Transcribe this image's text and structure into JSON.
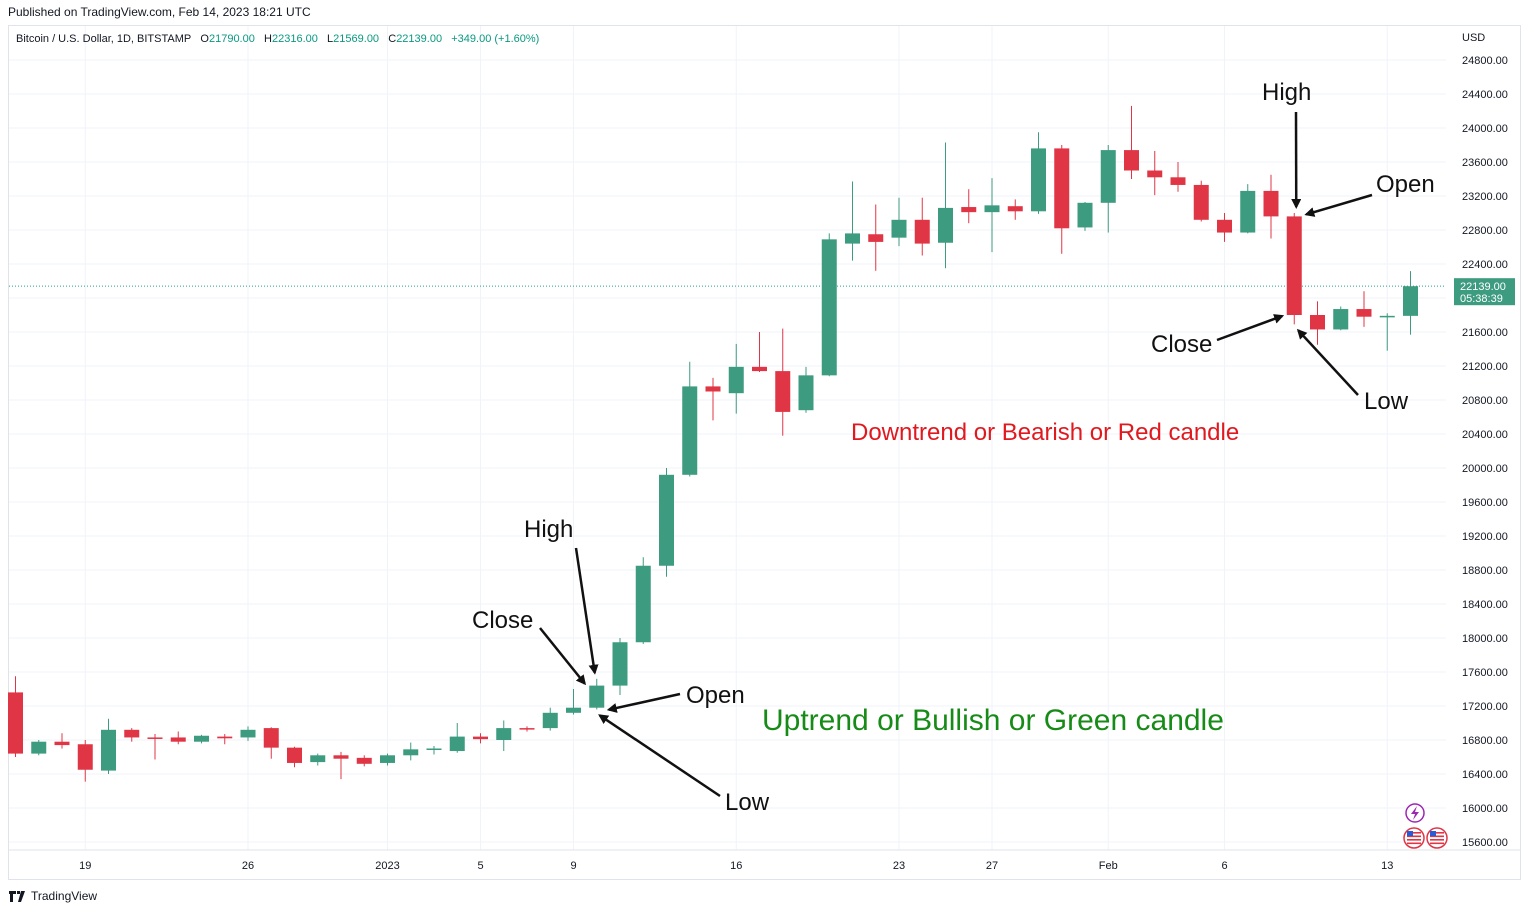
{
  "header": {
    "published": "Published on TradingView.com, Feb 14, 2023 18:21 UTC"
  },
  "legend": {
    "symbol": "Bitcoin / U.S. Dollar, 1D, BITSTAMP",
    "o_label": "O",
    "o_value": "21790.00",
    "h_label": "H",
    "h_value": "22316.00",
    "l_label": "L",
    "l_value": "21569.00",
    "c_label": "C",
    "c_value": "22139.00",
    "change": "+349.00 (+1.60%)"
  },
  "price_label": {
    "price": "22139.00",
    "countdown": "05:38:39"
  },
  "footer": {
    "brand": "TradingView"
  },
  "colors": {
    "up": "#26a69a",
    "up_body": "#3d9b7f",
    "down": "#e03545",
    "grid": "#f0f3fa",
    "axis_text": "#131722",
    "price_line": "#2a9d8f",
    "annot_black": "#111111",
    "annot_red": "#e0191f",
    "annot_green": "#178b17"
  },
  "icons": [
    "lightning-icon",
    "us-flag-icon",
    "us-flag-icon"
  ],
  "chart_data": {
    "type": "candlestick",
    "y_axis_unit": "USD",
    "ylim": [
      15400,
      25000
    ],
    "y_ticks": [
      15600,
      16000,
      16400,
      16800,
      17200,
      17600,
      18000,
      18400,
      18800,
      19200,
      19600,
      20000,
      20400,
      20800,
      21200,
      21600,
      22000,
      22400,
      22800,
      23200,
      23600,
      24000,
      24400,
      24800
    ],
    "y_tick_labels": [
      "15600.00",
      "16000.00",
      "16400.00",
      "16800.00",
      "17200.00",
      "17600.00",
      "18000.00",
      "18400.00",
      "18800.00",
      "19200.00",
      "19600.00",
      "20000.00",
      "20400.00",
      "20800.00",
      "21200.00",
      "21600.00",
      "22000.00",
      "22400.00",
      "22800.00",
      "23200.00",
      "23600.00",
      "24000.00",
      "24400.00",
      "24800.00"
    ],
    "x_ticks": [
      {
        "index": 3,
        "label": "19"
      },
      {
        "index": 10,
        "label": "26"
      },
      {
        "index": 16,
        "label": "2023"
      },
      {
        "index": 20,
        "label": "5"
      },
      {
        "index": 24,
        "label": "9"
      },
      {
        "index": 31,
        "label": "16"
      },
      {
        "index": 38,
        "label": "23"
      },
      {
        "index": 42,
        "label": "27"
      },
      {
        "index": 47,
        "label": "Feb"
      },
      {
        "index": 52,
        "label": "6"
      },
      {
        "index": 59,
        "label": "13"
      }
    ],
    "candles": [
      {
        "o": 17360,
        "h": 17550,
        "l": 16600,
        "c": 16640
      },
      {
        "o": 16640,
        "h": 16800,
        "l": 16620,
        "c": 16780
      },
      {
        "o": 16780,
        "h": 16880,
        "l": 16700,
        "c": 16740
      },
      {
        "o": 16750,
        "h": 16800,
        "l": 16310,
        "c": 16450
      },
      {
        "o": 16440,
        "h": 17050,
        "l": 16400,
        "c": 16920
      },
      {
        "o": 16920,
        "h": 16940,
        "l": 16780,
        "c": 16830
      },
      {
        "o": 16830,
        "h": 16870,
        "l": 16570,
        "c": 16820
      },
      {
        "o": 16830,
        "h": 16900,
        "l": 16750,
        "c": 16780
      },
      {
        "o": 16780,
        "h": 16860,
        "l": 16760,
        "c": 16850
      },
      {
        "o": 16840,
        "h": 16870,
        "l": 16750,
        "c": 16820
      },
      {
        "o": 16830,
        "h": 16960,
        "l": 16790,
        "c": 16920
      },
      {
        "o": 16940,
        "h": 16950,
        "l": 16580,
        "c": 16710
      },
      {
        "o": 16710,
        "h": 16720,
        "l": 16480,
        "c": 16530
      },
      {
        "o": 16540,
        "h": 16640,
        "l": 16500,
        "c": 16620
      },
      {
        "o": 16620,
        "h": 16660,
        "l": 16340,
        "c": 16580
      },
      {
        "o": 16590,
        "h": 16620,
        "l": 16490,
        "c": 16520
      },
      {
        "o": 16530,
        "h": 16640,
        "l": 16500,
        "c": 16620
      },
      {
        "o": 16620,
        "h": 16770,
        "l": 16560,
        "c": 16690
      },
      {
        "o": 16690,
        "h": 16730,
        "l": 16630,
        "c": 16700
      },
      {
        "o": 16670,
        "h": 17000,
        "l": 16650,
        "c": 16840
      },
      {
        "o": 16840,
        "h": 16880,
        "l": 16760,
        "c": 16810
      },
      {
        "o": 16800,
        "h": 17030,
        "l": 16670,
        "c": 16940
      },
      {
        "o": 16940,
        "h": 16960,
        "l": 16900,
        "c": 16930
      },
      {
        "o": 16940,
        "h": 17180,
        "l": 16910,
        "c": 17120
      },
      {
        "o": 17120,
        "h": 17400,
        "l": 17100,
        "c": 17180
      },
      {
        "o": 17180,
        "h": 17520,
        "l": 17160,
        "c": 17440
      },
      {
        "o": 17440,
        "h": 18000,
        "l": 17330,
        "c": 17950
      },
      {
        "o": 17950,
        "h": 18950,
        "l": 17930,
        "c": 18850
      },
      {
        "o": 18850,
        "h": 20000,
        "l": 18720,
        "c": 19920
      },
      {
        "o": 19920,
        "h": 21250,
        "l": 19900,
        "c": 20960
      },
      {
        "o": 20960,
        "h": 21060,
        "l": 20560,
        "c": 20900
      },
      {
        "o": 20880,
        "h": 21460,
        "l": 20640,
        "c": 21190
      },
      {
        "o": 21190,
        "h": 21600,
        "l": 21130,
        "c": 21140
      },
      {
        "o": 21140,
        "h": 21640,
        "l": 20380,
        "c": 20660
      },
      {
        "o": 20680,
        "h": 21190,
        "l": 20650,
        "c": 21090
      },
      {
        "o": 21090,
        "h": 22760,
        "l": 21080,
        "c": 22690
      },
      {
        "o": 22640,
        "h": 23370,
        "l": 22440,
        "c": 22760
      },
      {
        "o": 22750,
        "h": 23100,
        "l": 22320,
        "c": 22660
      },
      {
        "o": 22710,
        "h": 23180,
        "l": 22610,
        "c": 22920
      },
      {
        "o": 22920,
        "h": 23180,
        "l": 22500,
        "c": 22640
      },
      {
        "o": 22650,
        "h": 23830,
        "l": 22350,
        "c": 23060
      },
      {
        "o": 23070,
        "h": 23280,
        "l": 22880,
        "c": 23010
      },
      {
        "o": 23010,
        "h": 23410,
        "l": 22540,
        "c": 23090
      },
      {
        "o": 23080,
        "h": 23160,
        "l": 22920,
        "c": 23020
      },
      {
        "o": 23020,
        "h": 23950,
        "l": 22990,
        "c": 23760
      },
      {
        "o": 23760,
        "h": 23800,
        "l": 22520,
        "c": 22820
      },
      {
        "o": 22830,
        "h": 23130,
        "l": 22790,
        "c": 23120
      },
      {
        "o": 23120,
        "h": 23800,
        "l": 22770,
        "c": 23740
      },
      {
        "o": 23740,
        "h": 24260,
        "l": 23400,
        "c": 23500
      },
      {
        "o": 23500,
        "h": 23730,
        "l": 23210,
        "c": 23420
      },
      {
        "o": 23420,
        "h": 23600,
        "l": 23250,
        "c": 23330
      },
      {
        "o": 23330,
        "h": 23380,
        "l": 22900,
        "c": 22920
      },
      {
        "o": 22920,
        "h": 23000,
        "l": 22660,
        "c": 22770
      },
      {
        "o": 22770,
        "h": 23340,
        "l": 22760,
        "c": 23260
      },
      {
        "o": 23260,
        "h": 23450,
        "l": 22700,
        "c": 22960
      },
      {
        "o": 22960,
        "h": 23000,
        "l": 21690,
        "c": 21800
      },
      {
        "o": 21800,
        "h": 21960,
        "l": 21450,
        "c": 21630
      },
      {
        "o": 21630,
        "h": 21900,
        "l": 21620,
        "c": 21870
      },
      {
        "o": 21870,
        "h": 22080,
        "l": 21660,
        "c": 21780
      },
      {
        "o": 21780,
        "h": 21820,
        "l": 21380,
        "c": 21790
      },
      {
        "o": 21790,
        "h": 22316,
        "l": 21569,
        "c": 22139
      }
    ],
    "last_price": 22139.0,
    "annotations": {
      "bull_index": 25,
      "bear_index": 55,
      "bull_high": "High",
      "bull_close": "Close",
      "bull_open": "Open",
      "bull_low": "Low",
      "bear_high": "High",
      "bear_open": "Open",
      "bear_close": "Close",
      "bear_low": "Low",
      "bear_caption": "Downtrend or Bearish or Red candle",
      "bull_caption": "Uptrend or Bullish or Green candle"
    }
  }
}
